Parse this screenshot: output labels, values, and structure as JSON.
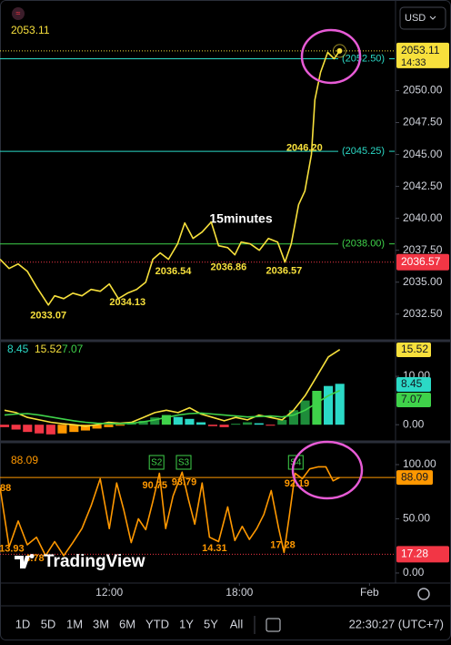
{
  "ui": {
    "currency": "USD",
    "timeframes": [
      "1D",
      "5D",
      "1M",
      "3M",
      "6M",
      "YTD",
      "1Y",
      "5Y",
      "All"
    ],
    "clock": "22:30:27 (UTC+7)",
    "logo": "TradingView"
  },
  "chart_data": [
    {
      "type": "line",
      "annotation": "15minutes",
      "legend_value": "2053.11",
      "xlim": [
        6.96,
        25.2
      ],
      "ylim": [
        2030.7,
        2057.1
      ],
      "yticks": [
        {
          "value": 2032.5,
          "label": "2032.50"
        },
        {
          "value": 2035,
          "label": "2035.00"
        },
        {
          "value": 2037.5,
          "label": "2037.50"
        },
        {
          "value": 2040,
          "label": "2040.00"
        },
        {
          "value": 2042.5,
          "label": "2042.50"
        },
        {
          "value": 2045,
          "label": "2045.00"
        },
        {
          "value": 2047.5,
          "label": "2047.50"
        },
        {
          "value": 2050,
          "label": "2050.00"
        }
      ],
      "series": [
        {
          "type": "line",
          "color": "#f7e03c",
          "x": [
            6.96,
            7.38,
            7.8,
            8.22,
            8.64,
            9.19,
            9.48,
            9.9,
            10.32,
            10.74,
            11.16,
            11.58,
            12.0,
            12.42,
            12.84,
            13.26,
            13.68,
            14.01,
            14.35,
            14.73,
            15.15,
            15.48,
            15.86,
            16.28,
            16.7,
            17.04,
            17.46,
            17.79,
            18.08,
            18.5,
            18.92,
            19.34,
            19.76,
            20.1,
            20.39,
            20.73,
            21.02,
            21.32,
            21.48,
            21.74,
            22.07,
            22.37,
            22.62
          ],
          "values": [
            2036.79,
            2036.07,
            2036.43,
            2035.86,
            2034.64,
            2033.21,
            2033.93,
            2033.71,
            2034.14,
            2033.93,
            2034.43,
            2034.29,
            2034.86,
            2033.71,
            2034.14,
            2034.43,
            2035.0,
            2036.79,
            2037.29,
            2036.79,
            2038.0,
            2039.64,
            2038.43,
            2038.93,
            2039.71,
            2037.86,
            2037.71,
            2037.14,
            2038.14,
            2038.0,
            2037.5,
            2038.43,
            2038.14,
            2036.57,
            2038.0,
            2041.07,
            2042.14,
            2045.0,
            2049.29,
            2051.43,
            2053.0,
            2052.5,
            2053.11
          ]
        }
      ],
      "levels": [
        {
          "value": 2052.5,
          "label": "(2052.50)",
          "color": "#2bd9c6"
        },
        {
          "value": 2045.25,
          "label": "(2045.25)",
          "color": "#2bd9c6"
        },
        {
          "value": 2038,
          "label": "(2038.00)",
          "color": "#3fd24a"
        }
      ],
      "markers": [
        {
          "value": 2053.11,
          "label": "2053.11",
          "time": "14:33",
          "color": "#f7e03c",
          "text_color": "#131722"
        },
        {
          "value": 2036.57,
          "label": "2036.57",
          "color": "#f23645",
          "text_color": "#ffffff"
        }
      ],
      "point_labels": [
        {
          "value": 2033.07,
          "label": "2033.07",
          "x": 9.19
        },
        {
          "value": 2034.13,
          "label": "2034.13",
          "x": 12.84
        },
        {
          "value": 2036.54,
          "label": "2036.54",
          "x": 14.95
        },
        {
          "value": 2036.86,
          "label": "2036.86",
          "x": 17.5
        },
        {
          "value": 2036.57,
          "label": "2036.57",
          "x": 20.06
        },
        {
          "value": 2046.2,
          "label": "2046.20",
          "x": 21.0
        }
      ]
    },
    {
      "type": "combo",
      "xlim": [
        6.96,
        25.2
      ],
      "ylim": [
        -2.6,
        16.6
      ],
      "yticks": [
        {
          "value": 0,
          "label": "0.00"
        },
        {
          "value": 10,
          "label": "10.00"
        }
      ],
      "series": [
        {
          "type": "bar",
          "color": "#2bd9c6",
          "x": [
            7.17,
            7.7,
            8.23,
            8.77,
            9.3,
            9.83,
            10.37,
            10.9,
            11.43,
            11.97,
            12.5,
            13.03,
            13.57,
            14.1,
            14.63,
            15.17,
            15.7,
            16.23,
            16.77,
            17.3,
            17.83,
            18.37,
            18.9,
            19.43,
            19.97,
            20.5,
            21.03,
            21.57,
            22.1,
            22.63
          ],
          "values": [
            -0.5,
            -1.0,
            -1.5,
            -1.8,
            -2.0,
            -1.8,
            -1.5,
            -1.2,
            -0.8,
            -0.5,
            -0.2,
            0.3,
            0.8,
            1.5,
            2.0,
            1.6,
            1.2,
            0.5,
            -0.3,
            -0.5,
            0.2,
            0.5,
            0.3,
            -0.2,
            1.0,
            3.0,
            5.0,
            7.0,
            8.0,
            8.45
          ],
          "colors": [
            "#f23645",
            "#f23645",
            "#f23645",
            "#f23645",
            "#f23645",
            "#ff9800",
            "#ff9800",
            "#ff9800",
            "#ff9800",
            "#ff9800",
            "#ff9800",
            "#1e8c3a",
            "#1e8c3a",
            "#1e8c3a",
            "#3fd24a",
            "#2bd9c6",
            "#2bd9c6",
            "#2bd9c6",
            "#f23645",
            "#f23645",
            "#1e8c3a",
            "#1e8c3a",
            "#2bd9c6",
            "#f23645",
            "#1e8c3a",
            "#1e8c3a",
            "#1e8c3a",
            "#3fd24a",
            "#2bd9c6",
            "#2bd9c6"
          ]
        },
        {
          "type": "line",
          "color": "#f7e03c",
          "x": [
            7.17,
            7.7,
            8.23,
            8.77,
            9.3,
            9.83,
            10.37,
            10.9,
            11.43,
            11.97,
            12.5,
            13.03,
            13.57,
            14.1,
            14.63,
            15.17,
            15.7,
            16.23,
            16.77,
            17.3,
            17.83,
            18.37,
            18.9,
            19.43,
            19.97,
            20.5,
            21.03,
            21.57,
            22.1,
            22.63
          ],
          "values": [
            3,
            2.5,
            1.5,
            1,
            0.5,
            0.2,
            0,
            -0.3,
            0,
            0.5,
            0.3,
            0.5,
            1.5,
            2.5,
            3,
            2.5,
            3.5,
            2.2,
            1.5,
            0.8,
            1.5,
            1.0,
            2.0,
            1.5,
            1.0,
            3,
            6,
            10,
            14,
            15.52
          ]
        },
        {
          "type": "line",
          "color": "#3fd24a",
          "x": [
            7.17,
            7.7,
            8.23,
            8.77,
            9.3,
            9.83,
            10.37,
            10.9,
            11.43,
            11.97,
            12.5,
            13.03,
            13.57,
            14.1,
            14.63,
            15.17,
            15.7,
            16.23,
            16.77,
            17.3,
            17.83,
            18.37,
            18.9,
            19.43,
            19.97,
            20.5,
            21.03,
            21.57,
            22.1,
            22.63
          ],
          "values": [
            2,
            2.2,
            2.3,
            2.0,
            1.6,
            1.2,
            0.8,
            0.5,
            0.3,
            0.2,
            0.2,
            0.3,
            0.6,
            1.0,
            1.5,
            2.0,
            2.3,
            2.4,
            2.2,
            2.0,
            1.8,
            1.6,
            1.7,
            1.8,
            1.6,
            2.0,
            3.0,
            4.5,
            6.0,
            7.07
          ]
        }
      ]
    },
    {
      "type": "line",
      "xlim": [
        6.96,
        25.2
      ],
      "ylim": [
        -7.6,
        116.8
      ],
      "yticks": [
        {
          "value": 0,
          "label": "0.00"
        },
        {
          "value": 50,
          "label": "50.00"
        },
        {
          "value": 100,
          "label": "100.00"
        }
      ],
      "xticks": [
        {
          "value": 12,
          "label": "12:00"
        },
        {
          "value": 18,
          "label": "18:00"
        },
        {
          "value": 24,
          "label": "Feb"
        }
      ],
      "series": [
        {
          "type": "line",
          "color": "#ff9800",
          "x": [
            6.96,
            7.38,
            7.8,
            8.22,
            8.64,
            9.06,
            9.48,
            9.9,
            10.32,
            10.74,
            11.16,
            11.58,
            12.0,
            12.34,
            12.67,
            13.01,
            13.34,
            13.68,
            14.01,
            14.31,
            14.6,
            14.94,
            15.36,
            15.65,
            15.94,
            16.28,
            16.62,
            17.04,
            17.46,
            17.79,
            18.13,
            18.46,
            18.8,
            19.13,
            19.47,
            19.81,
            20.06,
            20.31,
            20.57,
            20.9,
            21.24,
            21.65,
            21.99,
            22.32,
            22.62
          ],
          "values": [
            79,
            24,
            48,
            26,
            33,
            16,
            29,
            16,
            28,
            41,
            62,
            87,
            41,
            83,
            58,
            28,
            50,
            40,
            66,
            92,
            41,
            71,
            93,
            68,
            45,
            83,
            33,
            29,
            61,
            30,
            43,
            31,
            41,
            54,
            76,
            41,
            19,
            54,
            92,
            87,
            96,
            98,
            98,
            85,
            88.09
          ]
        }
      ],
      "markers": [
        {
          "value": 17.28,
          "color": "#f23645",
          "text_color": "#ffffff"
        }
      ],
      "point_labels": [
        {
          "value": 88,
          "x": 6.96
        },
        {
          "value": 13.93,
          "label": "13.93",
          "x": 7.5
        },
        {
          "value": 4.78,
          "label": "4.78",
          "x": 8.55
        },
        {
          "value": 90.75,
          "label": "90.75",
          "x": 14.1
        },
        {
          "value": 93.79,
          "label": "93.79",
          "x": 15.45
        },
        {
          "value": 14.31,
          "label": "14.31",
          "x": 16.85
        },
        {
          "value": 17.28,
          "x": 20.0
        },
        {
          "value": 92.19,
          "label": "92.19",
          "x": 20.65
        }
      ],
      "signals": [
        {
          "label": "S2",
          "x": 14.18
        },
        {
          "label": "S3",
          "x": 15.43
        },
        {
          "label": "S4",
          "x": 20.6
        }
      ]
    }
  ]
}
